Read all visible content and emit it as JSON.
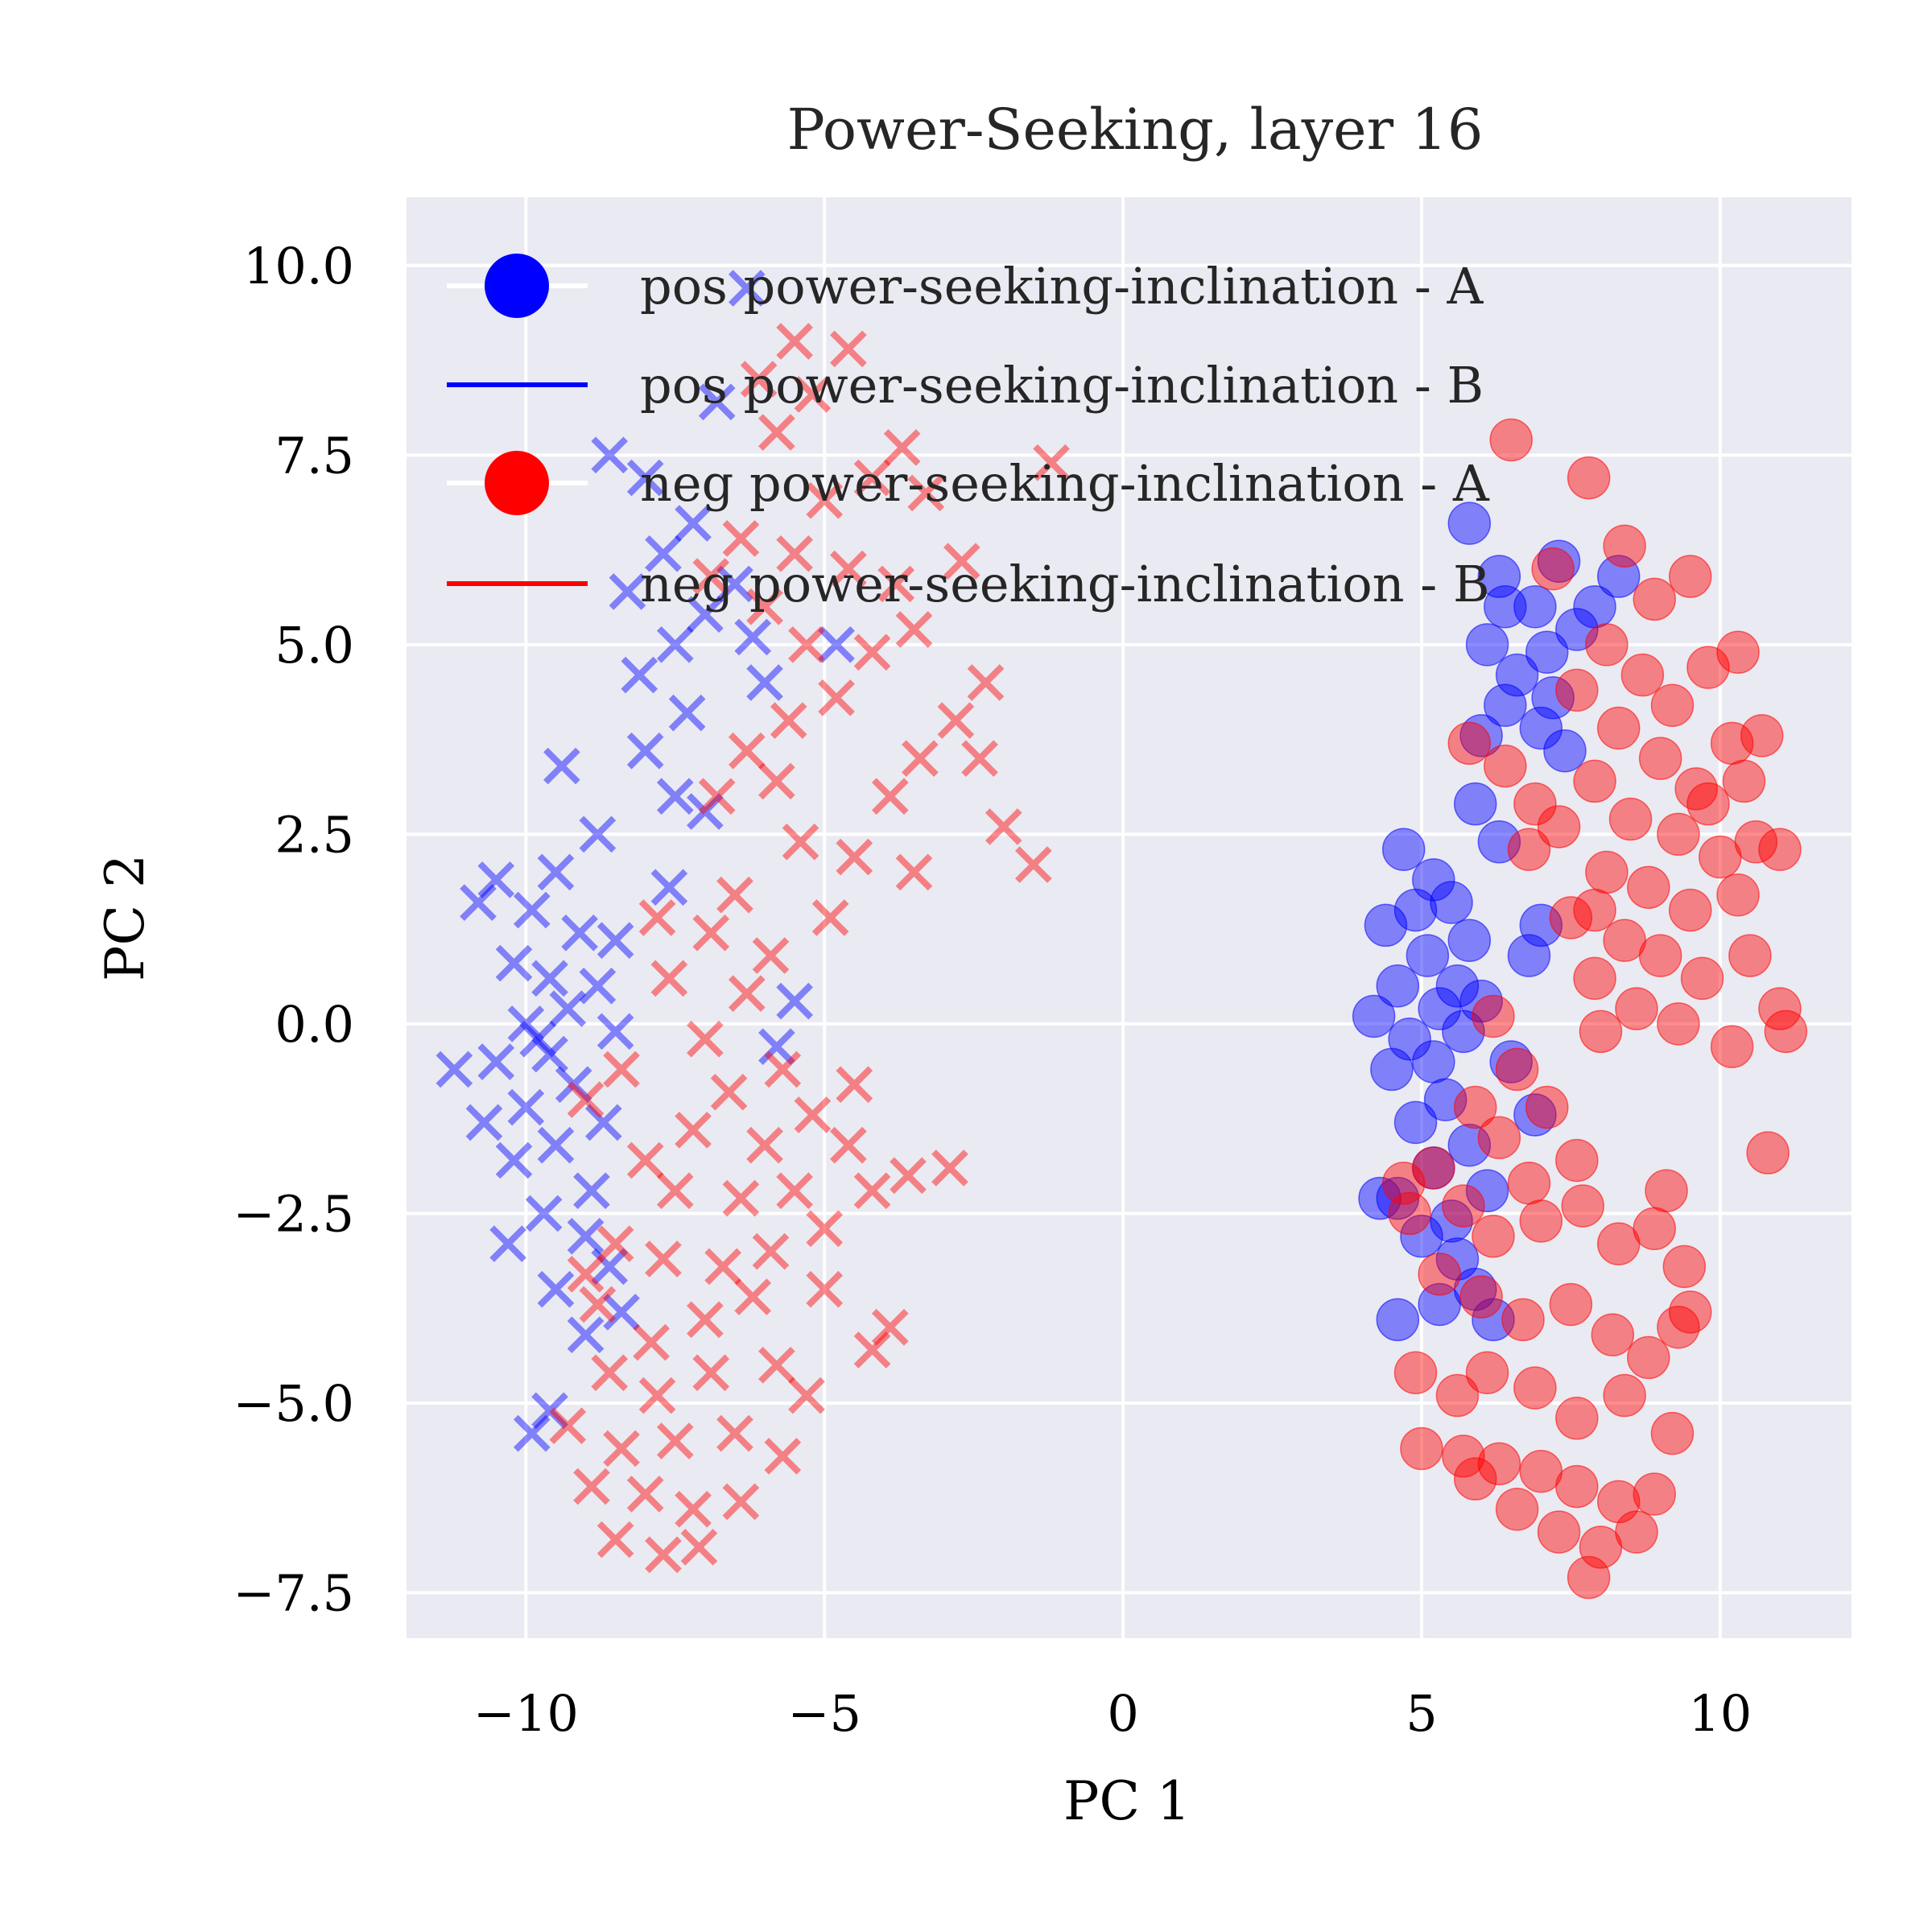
{
  "chart_data": {
    "type": "scatter",
    "title": "Power-Seeking, layer 16",
    "xlabel": "PC 1",
    "ylabel": "PC 2",
    "xlim": [
      -12.0,
      12.2
    ],
    "ylim": [
      -8.1,
      10.9
    ],
    "xticks": [
      -10,
      -5,
      0,
      5,
      10
    ],
    "xtick_labels": [
      "−10",
      "−5",
      "0",
      "5",
      "10"
    ],
    "yticks": [
      -7.5,
      -5.0,
      -2.5,
      0.0,
      2.5,
      5.0,
      7.5,
      10.0
    ],
    "ytick_labels": [
      "−7.5",
      "−5.0",
      "−2.5",
      "0.0",
      "2.5",
      "5.0",
      "7.5",
      "10.0"
    ],
    "grid": true,
    "background": "#eaeaf2",
    "legend_position": "top-right",
    "legend": [
      {
        "label": "pos power-seeking-inclination - A",
        "color": "#0000ff",
        "marker": "circle"
      },
      {
        "label": "pos power-seeking-inclination - B",
        "color": "#0000ff",
        "marker": "line"
      },
      {
        "label": "neg power-seeking-inclination - A",
        "color": "#ff0000",
        "marker": "circle"
      },
      {
        "label": "neg power-seeking-inclination - B",
        "color": "#ff0000",
        "marker": "line"
      }
    ],
    "series": [
      {
        "label": "pos power-seeking-inclination - A",
        "color": "#0000ff",
        "marker": "circle",
        "points": [
          [
            5.8,
            6.6
          ],
          [
            6.3,
            5.9
          ],
          [
            6.9,
            5.5
          ],
          [
            7.3,
            6.1
          ],
          [
            6.1,
            5.0
          ],
          [
            6.6,
            4.6
          ],
          [
            7.1,
            4.9
          ],
          [
            7.6,
            5.2
          ],
          [
            6.4,
            4.2
          ],
          [
            7.0,
            3.9
          ],
          [
            6.0,
            3.8
          ],
          [
            7.4,
            3.6
          ],
          [
            8.3,
            5.9
          ],
          [
            7.9,
            5.5
          ],
          [
            4.7,
            2.3
          ],
          [
            5.2,
            1.9
          ],
          [
            4.9,
            1.5
          ],
          [
            5.5,
            1.6
          ],
          [
            5.8,
            1.1
          ],
          [
            4.4,
            1.3
          ],
          [
            5.1,
            0.9
          ],
          [
            4.6,
            0.5
          ],
          [
            5.3,
            0.2
          ],
          [
            4.2,
            0.1
          ],
          [
            5.6,
            0.5
          ],
          [
            4.8,
            -0.2
          ],
          [
            5.2,
            -0.5
          ],
          [
            4.5,
            -0.6
          ],
          [
            5.7,
            -0.1
          ],
          [
            6.0,
            0.3
          ],
          [
            5.4,
            -1.0
          ],
          [
            4.9,
            -1.3
          ],
          [
            5.8,
            -1.6
          ],
          [
            5.2,
            -1.9
          ],
          [
            4.6,
            -2.3
          ],
          [
            5.5,
            -2.6
          ],
          [
            6.1,
            -2.2
          ],
          [
            5.0,
            -2.8
          ],
          [
            5.6,
            -3.1
          ],
          [
            5.9,
            -3.5
          ],
          [
            5.3,
            -3.7
          ],
          [
            4.6,
            -3.9
          ],
          [
            6.2,
            -3.9
          ],
          [
            6.3,
            2.4
          ],
          [
            5.9,
            2.9
          ],
          [
            6.8,
            0.9
          ],
          [
            7.0,
            1.3
          ],
          [
            6.5,
            -0.5
          ],
          [
            6.9,
            -1.2
          ],
          [
            7.2,
            4.3
          ],
          [
            4.3,
            -2.3
          ],
          [
            6.4,
            5.5
          ]
        ]
      },
      {
        "label": "neg power-seeking-inclination - A",
        "color": "#ff0000",
        "marker": "circle",
        "points": [
          [
            6.5,
            7.7
          ],
          [
            7.8,
            7.2
          ],
          [
            8.4,
            6.3
          ],
          [
            7.2,
            6.0
          ],
          [
            8.9,
            5.6
          ],
          [
            9.5,
            5.9
          ],
          [
            8.1,
            5.0
          ],
          [
            8.7,
            4.6
          ],
          [
            9.2,
            4.2
          ],
          [
            7.6,
            4.4
          ],
          [
            9.8,
            4.7
          ],
          [
            10.3,
            4.9
          ],
          [
            8.3,
            3.9
          ],
          [
            9.0,
            3.5
          ],
          [
            9.6,
            3.1
          ],
          [
            10.2,
            3.7
          ],
          [
            10.7,
            3.8
          ],
          [
            7.9,
            3.2
          ],
          [
            8.5,
            2.7
          ],
          [
            9.3,
            2.5
          ],
          [
            10.0,
            2.2
          ],
          [
            10.6,
            2.4
          ],
          [
            11.0,
            2.3
          ],
          [
            7.3,
            2.6
          ],
          [
            6.8,
            2.3
          ],
          [
            8.1,
            2.0
          ],
          [
            8.8,
            1.8
          ],
          [
            9.5,
            1.5
          ],
          [
            10.3,
            1.7
          ],
          [
            7.5,
            1.4
          ],
          [
            8.4,
            1.1
          ],
          [
            9.0,
            0.9
          ],
          [
            9.7,
            0.6
          ],
          [
            10.5,
            0.9
          ],
          [
            7.9,
            0.6
          ],
          [
            8.6,
            0.2
          ],
          [
            9.3,
            0.0
          ],
          [
            10.2,
            -0.3
          ],
          [
            11.0,
            0.2
          ],
          [
            11.1,
            -0.1
          ],
          [
            10.8,
            -1.7
          ],
          [
            8.0,
            -0.1
          ],
          [
            5.8,
            3.7
          ],
          [
            6.4,
            3.4
          ],
          [
            6.9,
            2.9
          ],
          [
            6.2,
            0.1
          ],
          [
            6.6,
            -0.6
          ],
          [
            5.9,
            -1.1
          ],
          [
            6.3,
            -1.5
          ],
          [
            7.1,
            -1.1
          ],
          [
            7.6,
            -1.8
          ],
          [
            6.8,
            -2.1
          ],
          [
            5.7,
            -2.4
          ],
          [
            6.2,
            -2.8
          ],
          [
            7.0,
            -2.6
          ],
          [
            7.7,
            -2.4
          ],
          [
            8.3,
            -2.9
          ],
          [
            8.9,
            -2.7
          ],
          [
            9.4,
            -3.2
          ],
          [
            5.3,
            -3.3
          ],
          [
            6.0,
            -3.6
          ],
          [
            6.7,
            -3.9
          ],
          [
            7.5,
            -3.7
          ],
          [
            8.2,
            -4.1
          ],
          [
            8.8,
            -4.4
          ],
          [
            9.3,
            -4.0
          ],
          [
            5.2,
            -1.9
          ],
          [
            4.8,
            -2.5
          ],
          [
            4.9,
            -4.6
          ],
          [
            5.6,
            -4.9
          ],
          [
            6.1,
            -4.6
          ],
          [
            6.9,
            -4.8
          ],
          [
            7.6,
            -5.2
          ],
          [
            8.4,
            -4.9
          ],
          [
            9.2,
            -5.4
          ],
          [
            5.0,
            -5.6
          ],
          [
            5.7,
            -5.7
          ],
          [
            6.3,
            -5.8
          ],
          [
            7.0,
            -5.9
          ],
          [
            7.6,
            -6.1
          ],
          [
            8.3,
            -6.3
          ],
          [
            8.9,
            -6.2
          ],
          [
            5.9,
            -6.0
          ],
          [
            6.6,
            -6.4
          ],
          [
            7.3,
            -6.7
          ],
          [
            8.0,
            -6.9
          ],
          [
            8.6,
            -6.7
          ],
          [
            7.8,
            -7.3
          ],
          [
            9.5,
            -3.8
          ],
          [
            9.1,
            -2.2
          ],
          [
            4.7,
            -2.1
          ],
          [
            7.9,
            1.5
          ],
          [
            9.8,
            2.9
          ],
          [
            10.4,
            3.2
          ]
        ]
      },
      {
        "label": "pos power-seeking-inclination - B",
        "color": "#0000ff",
        "marker": "x",
        "points": [
          [
            -6.3,
            9.7
          ],
          [
            -6.8,
            8.2
          ],
          [
            -8.6,
            7.5
          ],
          [
            -8.0,
            7.2
          ],
          [
            -7.2,
            6.6
          ],
          [
            -7.7,
            6.2
          ],
          [
            -8.3,
            5.7
          ],
          [
            -6.5,
            5.8
          ],
          [
            -7.0,
            5.4
          ],
          [
            -7.5,
            5.0
          ],
          [
            -8.1,
            4.6
          ],
          [
            -6.2,
            5.1
          ],
          [
            -4.8,
            5.0
          ],
          [
            -6.0,
            4.5
          ],
          [
            -7.3,
            4.1
          ],
          [
            -8.0,
            3.6
          ],
          [
            -9.4,
            3.4
          ],
          [
            -7.5,
            3.0
          ],
          [
            -8.8,
            2.5
          ],
          [
            -9.5,
            2.0
          ],
          [
            -10.5,
            1.9
          ],
          [
            -10.8,
            1.6
          ],
          [
            -9.9,
            1.5
          ],
          [
            -9.1,
            1.2
          ],
          [
            -8.5,
            1.1
          ],
          [
            -10.2,
            0.8
          ],
          [
            -9.6,
            0.6
          ],
          [
            -8.8,
            0.5
          ],
          [
            -9.3,
            0.2
          ],
          [
            -10.0,
            0.0
          ],
          [
            -8.5,
            -0.1
          ],
          [
            -9.6,
            -0.4
          ],
          [
            -10.5,
            -0.5
          ],
          [
            -11.2,
            -0.6
          ],
          [
            -9.2,
            -0.8
          ],
          [
            -10.0,
            -1.1
          ],
          [
            -8.7,
            -1.3
          ],
          [
            -10.7,
            -1.3
          ],
          [
            -9.5,
            -1.6
          ],
          [
            -10.2,
            -1.8
          ],
          [
            -8.9,
            -2.2
          ],
          [
            -9.7,
            -2.5
          ],
          [
            -9.0,
            -2.8
          ],
          [
            -10.3,
            -2.9
          ],
          [
            -8.6,
            -3.2
          ],
          [
            -9.5,
            -3.5
          ],
          [
            -8.4,
            -3.8
          ],
          [
            -9.0,
            -4.1
          ],
          [
            -9.6,
            -5.1
          ],
          [
            -9.9,
            -5.4
          ],
          [
            -5.8,
            -0.3
          ],
          [
            -7.6,
            1.8
          ],
          [
            -5.5,
            0.3
          ],
          [
            -7.0,
            2.8
          ],
          [
            -9.8,
            -0.2
          ]
        ]
      },
      {
        "label": "neg power-seeking-inclination - B",
        "color": "#ff0000",
        "marker": "x",
        "points": [
          [
            -5.5,
            9.0
          ],
          [
            -4.6,
            8.9
          ],
          [
            -6.1,
            8.5
          ],
          [
            -5.2,
            8.3
          ],
          [
            -5.8,
            7.8
          ],
          [
            -3.7,
            7.6
          ],
          [
            -4.2,
            7.2
          ],
          [
            -5.0,
            6.9
          ],
          [
            -3.3,
            7.0
          ],
          [
            -1.2,
            7.4
          ],
          [
            -6.4,
            6.4
          ],
          [
            -5.5,
            6.2
          ],
          [
            -4.6,
            6.0
          ],
          [
            -3.8,
            5.8
          ],
          [
            -2.7,
            6.1
          ],
          [
            -6.9,
            5.9
          ],
          [
            -6.0,
            5.5
          ],
          [
            -5.3,
            5.0
          ],
          [
            -4.2,
            4.9
          ],
          [
            -3.5,
            5.2
          ],
          [
            -2.3,
            4.5
          ],
          [
            -2.8,
            4.0
          ],
          [
            -4.8,
            4.3
          ],
          [
            -5.6,
            4.0
          ],
          [
            -6.3,
            3.6
          ],
          [
            -5.8,
            3.2
          ],
          [
            -3.4,
            3.5
          ],
          [
            -3.9,
            3.0
          ],
          [
            -2.4,
            3.5
          ],
          [
            -4.5,
            2.2
          ],
          [
            -3.5,
            2.0
          ],
          [
            -2.0,
            2.6
          ],
          [
            -1.5,
            2.1
          ],
          [
            -6.8,
            3.0
          ],
          [
            -5.4,
            2.4
          ],
          [
            -6.5,
            1.7
          ],
          [
            -7.8,
            1.4
          ],
          [
            -6.9,
            1.2
          ],
          [
            -5.9,
            0.9
          ],
          [
            -7.6,
            0.6
          ],
          [
            -6.3,
            0.4
          ],
          [
            -7.0,
            -0.2
          ],
          [
            -5.7,
            -0.6
          ],
          [
            -6.6,
            -0.9
          ],
          [
            -4.5,
            -0.8
          ],
          [
            -5.2,
            -1.2
          ],
          [
            -6.0,
            -1.6
          ],
          [
            -7.2,
            -1.4
          ],
          [
            -8.0,
            -1.8
          ],
          [
            -9.0,
            -1.0
          ],
          [
            -8.4,
            -0.6
          ],
          [
            -7.5,
            -2.2
          ],
          [
            -6.4,
            -2.3
          ],
          [
            -5.5,
            -2.2
          ],
          [
            -4.2,
            -2.2
          ],
          [
            -3.6,
            -2.0
          ],
          [
            -2.9,
            -1.9
          ],
          [
            -5.0,
            -2.7
          ],
          [
            -5.9,
            -3.0
          ],
          [
            -6.7,
            -3.2
          ],
          [
            -7.7,
            -3.1
          ],
          [
            -8.5,
            -2.9
          ],
          [
            -9.0,
            -3.3
          ],
          [
            -7.0,
            -3.9
          ],
          [
            -6.2,
            -3.6
          ],
          [
            -5.0,
            -3.5
          ],
          [
            -4.2,
            -4.3
          ],
          [
            -3.9,
            -4.0
          ],
          [
            -5.8,
            -4.5
          ],
          [
            -6.9,
            -4.6
          ],
          [
            -7.8,
            -4.9
          ],
          [
            -8.6,
            -4.6
          ],
          [
            -9.3,
            -5.3
          ],
          [
            -8.4,
            -5.6
          ],
          [
            -7.5,
            -5.5
          ],
          [
            -6.5,
            -5.4
          ],
          [
            -5.7,
            -5.7
          ],
          [
            -8.9,
            -6.1
          ],
          [
            -8.0,
            -6.2
          ],
          [
            -7.2,
            -6.4
          ],
          [
            -6.4,
            -6.3
          ],
          [
            -8.5,
            -6.8
          ],
          [
            -7.7,
            -7.0
          ],
          [
            -7.1,
            -6.9
          ],
          [
            -8.8,
            -3.7
          ],
          [
            -7.9,
            -4.2
          ],
          [
            -4.6,
            -1.6
          ],
          [
            -5.3,
            -4.9
          ],
          [
            -4.9,
            1.4
          ]
        ]
      }
    ]
  }
}
